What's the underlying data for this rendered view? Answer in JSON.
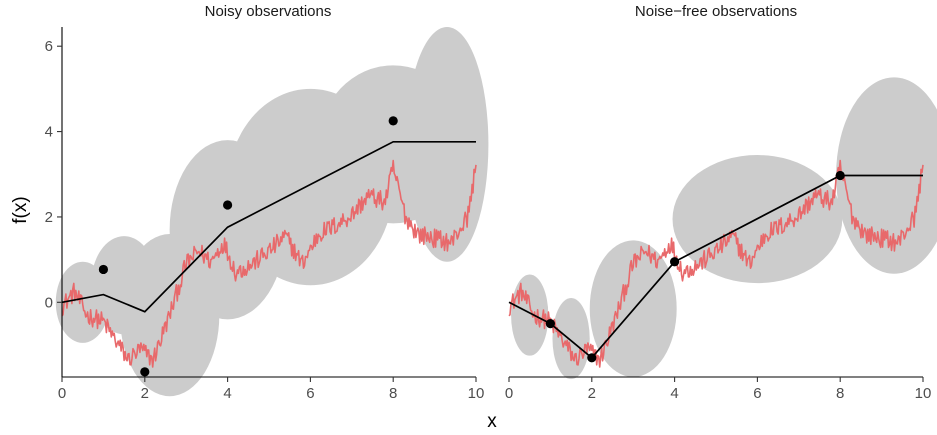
{
  "chart_data": [
    {
      "type": "line",
      "title": "Noisy observations",
      "xlabel": "x",
      "ylabel": "f(x)",
      "xlim": [
        0,
        10
      ],
      "ylim": [
        -1.75,
        6.45
      ],
      "x_ticks": [
        "0",
        "2",
        "4",
        "6",
        "8",
        "10"
      ],
      "y_ticks": [
        "0",
        "2",
        "4",
        "6"
      ],
      "observations": {
        "x": [
          1,
          2,
          4,
          8
        ],
        "y": [
          0.77,
          -1.63,
          2.28,
          4.25
        ]
      },
      "posterior_mean": {
        "x": [
          0,
          1,
          2,
          4,
          8,
          10
        ],
        "y": [
          0.0,
          0.18,
          -0.22,
          1.76,
          3.76,
          3.76
        ]
      },
      "credible_band": [
        {
          "x": 0.5,
          "y": 0.0,
          "rx": 0.65,
          "ry": 0.95
        },
        {
          "x": 1.5,
          "y": 0.4,
          "rx": 0.8,
          "ry": 1.15
        },
        {
          "x": 2.6,
          "y": -0.3,
          "rx": 1.2,
          "ry": 1.9
        },
        {
          "x": 4.0,
          "y": 1.7,
          "rx": 1.4,
          "ry": 2.1
        },
        {
          "x": 6.0,
          "y": 2.7,
          "rx": 2.0,
          "ry": 2.3
        },
        {
          "x": 8.0,
          "y": 3.7,
          "rx": 1.8,
          "ry": 1.85
        },
        {
          "x": 9.3,
          "y": 3.7,
          "rx": 1.0,
          "ry": 2.75
        }
      ],
      "true_function": {
        "x": [
          0,
          0.3,
          0.6,
          1.0,
          1.3,
          1.6,
          1.9,
          2.2,
          2.6,
          3.0,
          3.3,
          3.6,
          3.9,
          4.2,
          4.6,
          5.0,
          5.4,
          5.8,
          6.2,
          6.6,
          7.0,
          7.4,
          7.8,
          8.0,
          8.3,
          8.6,
          9.0,
          9.4,
          9.8,
          10.0
        ],
        "y": [
          -0.1,
          0.25,
          -0.3,
          -0.45,
          -0.9,
          -1.35,
          -1.1,
          -1.35,
          -0.3,
          0.9,
          1.2,
          0.95,
          1.4,
          0.7,
          0.9,
          1.2,
          1.55,
          0.9,
          1.6,
          1.8,
          2.05,
          2.5,
          2.35,
          3.15,
          2.0,
          1.6,
          1.5,
          1.4,
          2.0,
          3.2
        ]
      }
    },
    {
      "type": "line",
      "title": "Noise−free observations",
      "xlabel": "x",
      "xlim": [
        0,
        10
      ],
      "ylim": [
        -1.75,
        6.45
      ],
      "x_ticks": [
        "0",
        "2",
        "4",
        "6",
        "8",
        "10"
      ],
      "observations": {
        "x": [
          1,
          2,
          4,
          8
        ],
        "y": [
          -0.5,
          -1.3,
          0.95,
          2.97
        ]
      },
      "posterior_mean": {
        "x": [
          0,
          1,
          2,
          4,
          8,
          10
        ],
        "y": [
          0.0,
          -0.5,
          -1.3,
          0.95,
          2.97,
          2.97
        ]
      },
      "credible_band": [
        {
          "x": 0.5,
          "y": -0.3,
          "rx": 0.45,
          "ry": 0.95
        },
        {
          "x": 1.5,
          "y": -0.85,
          "rx": 0.45,
          "ry": 0.95
        },
        {
          "x": 3.0,
          "y": -0.15,
          "rx": 1.05,
          "ry": 1.6
        },
        {
          "x": 6.0,
          "y": 1.95,
          "rx": 2.05,
          "ry": 1.5
        },
        {
          "x": 9.3,
          "y": 2.97,
          "rx": 1.4,
          "ry": 2.3
        }
      ],
      "true_function": {
        "x": [
          0,
          0.3,
          0.6,
          1.0,
          1.3,
          1.6,
          1.9,
          2.2,
          2.6,
          3.0,
          3.3,
          3.6,
          3.9,
          4.2,
          4.6,
          5.0,
          5.4,
          5.8,
          6.2,
          6.6,
          7.0,
          7.4,
          7.8,
          8.0,
          8.3,
          8.6,
          9.0,
          9.4,
          9.8,
          10.0
        ],
        "y": [
          -0.1,
          0.25,
          -0.3,
          -0.45,
          -0.9,
          -1.35,
          -1.1,
          -1.35,
          -0.3,
          0.9,
          1.2,
          0.95,
          1.4,
          0.7,
          0.9,
          1.2,
          1.55,
          0.9,
          1.6,
          1.8,
          2.05,
          2.5,
          2.35,
          3.15,
          2.0,
          1.6,
          1.5,
          1.4,
          2.0,
          3.2
        ]
      }
    }
  ],
  "colors": {
    "band": "#cccccc",
    "true_function": "#e8696b",
    "mean": "#000000",
    "points": "#000000",
    "axis": "#000000",
    "tick_text": "#4d4d4d"
  }
}
